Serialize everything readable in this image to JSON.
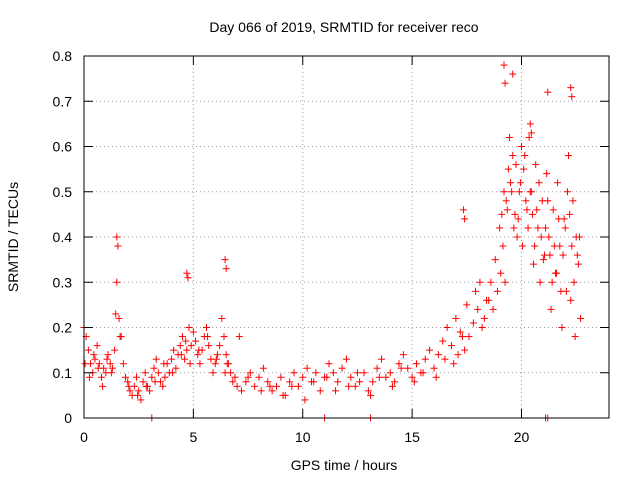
{
  "chart_data": {
    "type": "scatter",
    "title": "Day 066 of 2019, SRMTID for receiver reco",
    "xlabel": "GPS time / hours",
    "ylabel": "SRMTID / TECUs",
    "xlim": [
      0,
      24
    ],
    "ylim": [
      0,
      0.8
    ],
    "xticks": [
      0,
      5,
      10,
      15,
      20
    ],
    "xtick_labels": [
      "0",
      "5",
      "10",
      "15",
      "20"
    ],
    "yticks": [
      0,
      0.1,
      0.2,
      0.3,
      0.4,
      0.5,
      0.6,
      0.7,
      0.8
    ],
    "ytick_labels": [
      "0",
      "0.1",
      "0.2",
      "0.3",
      "0.4",
      "0.5",
      "0.6",
      "0.7",
      "0.8"
    ],
    "grid": true,
    "marker": "+",
    "color": "#ff0000",
    "series": [
      {
        "name": "SRMTID",
        "x": [
          0.0,
          0.1,
          0.2,
          0.3,
          0.4,
          0.5,
          0.6,
          0.7,
          0.8,
          0.9,
          1.0,
          1.1,
          1.2,
          1.3,
          1.4,
          1.5,
          1.6,
          1.7,
          1.8,
          1.9,
          2.0,
          2.1,
          2.2,
          2.3,
          2.4,
          2.5,
          2.6,
          2.7,
          2.8,
          2.9,
          3.0,
          3.1,
          3.2,
          3.3,
          3.4,
          3.5,
          3.6,
          3.7,
          3.8,
          3.9,
          4.0,
          4.1,
          4.2,
          4.3,
          4.4,
          4.5,
          4.6,
          4.7,
          4.8,
          4.9,
          5.0,
          5.1,
          5.2,
          5.3,
          5.4,
          5.5,
          5.6,
          5.7,
          5.8,
          5.9,
          6.0,
          6.1,
          6.2,
          6.3,
          6.4,
          6.5,
          6.6,
          6.7,
          6.8,
          6.9,
          7.0,
          7.2,
          7.4,
          7.6,
          7.8,
          8.0,
          8.2,
          8.4,
          8.6,
          8.8,
          9.0,
          9.2,
          9.4,
          9.6,
          9.8,
          10.0,
          10.2,
          10.4,
          10.6,
          10.8,
          11.0,
          11.2,
          11.4,
          11.6,
          11.8,
          12.0,
          12.2,
          12.4,
          12.6,
          12.8,
          13.0,
          13.2,
          13.4,
          13.6,
          13.8,
          14.0,
          14.2,
          14.4,
          14.6,
          14.8,
          15.0,
          15.2,
          15.4,
          15.6,
          15.8,
          16.0,
          16.2,
          16.4,
          16.6,
          16.8,
          17.0,
          17.2,
          17.4,
          17.6,
          17.8,
          18.0,
          18.2,
          18.4,
          18.6,
          18.8,
          19.0,
          19.1,
          19.2,
          19.3,
          19.4,
          19.5,
          19.6,
          19.7,
          19.8,
          19.9,
          20.0,
          20.1,
          20.2,
          20.3,
          20.4,
          20.5,
          20.6,
          20.7,
          20.8,
          20.9,
          21.0,
          21.1,
          21.2,
          21.3,
          21.4,
          21.5,
          21.6,
          21.7,
          21.8,
          21.9,
          22.0,
          22.1,
          22.2,
          22.3,
          22.4,
          22.5,
          22.6,
          22.7,
          0.05,
          0.25,
          0.45,
          0.65,
          0.85,
          1.05,
          1.25,
          1.45,
          1.65,
          2.05,
          2.45,
          2.85,
          3.25,
          3.65,
          4.05,
          4.45,
          4.65,
          4.85,
          5.25,
          5.65,
          6.05,
          6.45,
          6.55,
          7.1,
          7.5,
          8.1,
          8.5,
          9.1,
          9.5,
          10.1,
          10.5,
          11.1,
          11.5,
          12.1,
          12.5,
          13.1,
          13.5,
          14.1,
          14.5,
          15.1,
          15.5,
          16.1,
          16.5,
          16.9,
          17.1,
          17.3,
          17.5,
          17.9,
          18.1,
          18.3,
          18.5,
          18.7,
          18.9,
          19.05,
          19.15,
          19.25,
          19.35,
          19.45,
          19.55,
          19.65,
          19.75,
          19.85,
          19.95,
          20.05,
          20.15,
          20.25,
          20.35,
          20.45,
          20.55,
          20.65,
          20.75,
          20.85,
          20.95,
          21.05,
          21.15,
          21.25,
          21.35,
          21.45,
          21.55,
          21.65,
          21.75,
          21.85,
          21.95,
          22.05,
          22.15,
          22.25,
          22.35,
          22.45,
          22.55,
          22.65,
          1.5,
          1.55,
          4.7,
          4.75,
          6.45,
          6.5,
          17.35,
          17.4,
          19.2,
          19.25,
          19.6,
          20.4,
          20.45,
          21.2,
          22.25,
          22.3,
          3.1,
          11.0,
          13.1,
          21.1,
          21.2
        ],
        "y": [
          0.2,
          0.18,
          0.15,
          0.12,
          0.1,
          0.13,
          0.16,
          0.12,
          0.09,
          0.11,
          0.1,
          0.14,
          0.12,
          0.11,
          0.15,
          0.3,
          0.22,
          0.18,
          0.12,
          0.09,
          0.08,
          0.06,
          0.05,
          0.07,
          0.09,
          0.06,
          0.04,
          0.08,
          0.1,
          0.07,
          0.06,
          0.09,
          0.11,
          0.13,
          0.1,
          0.08,
          0.07,
          0.09,
          0.12,
          0.1,
          0.13,
          0.15,
          0.11,
          0.14,
          0.16,
          0.18,
          0.13,
          0.15,
          0.2,
          0.16,
          0.19,
          0.17,
          0.14,
          0.12,
          0.15,
          0.18,
          0.2,
          0.16,
          0.13,
          0.1,
          0.12,
          0.14,
          0.16,
          0.22,
          0.18,
          0.14,
          0.12,
          0.1,
          0.08,
          0.09,
          0.07,
          0.06,
          0.08,
          0.1,
          0.07,
          0.09,
          0.11,
          0.08,
          0.06,
          0.07,
          0.09,
          0.05,
          0.08,
          0.1,
          0.07,
          0.09,
          0.11,
          0.08,
          0.1,
          0.06,
          0.09,
          0.12,
          0.1,
          0.08,
          0.11,
          0.13,
          0.09,
          0.07,
          0.08,
          0.1,
          0.06,
          0.08,
          0.11,
          0.13,
          0.09,
          0.1,
          0.08,
          0.12,
          0.14,
          0.11,
          0.09,
          0.12,
          0.1,
          0.13,
          0.15,
          0.11,
          0.14,
          0.17,
          0.2,
          0.16,
          0.22,
          0.19,
          0.15,
          0.18,
          0.21,
          0.24,
          0.2,
          0.26,
          0.3,
          0.35,
          0.42,
          0.45,
          0.5,
          0.48,
          0.55,
          0.52,
          0.58,
          0.45,
          0.4,
          0.5,
          0.6,
          0.55,
          0.48,
          0.42,
          0.5,
          0.45,
          0.38,
          0.46,
          0.52,
          0.4,
          0.35,
          0.42,
          0.48,
          0.36,
          0.3,
          0.38,
          0.32,
          0.44,
          0.28,
          0.36,
          0.42,
          0.5,
          0.45,
          0.38,
          0.3,
          0.4,
          0.34,
          0.22,
          0.12,
          0.09,
          0.14,
          0.11,
          0.07,
          0.13,
          0.1,
          0.23,
          0.18,
          0.07,
          0.05,
          0.07,
          0.08,
          0.12,
          0.1,
          0.14,
          0.17,
          0.12,
          0.15,
          0.18,
          0.13,
          0.1,
          0.12,
          0.18,
          0.09,
          0.06,
          0.07,
          0.05,
          0.07,
          0.04,
          0.08,
          0.09,
          0.06,
          0.07,
          0.1,
          0.05,
          0.09,
          0.07,
          0.11,
          0.08,
          0.1,
          0.09,
          0.13,
          0.12,
          0.14,
          0.18,
          0.25,
          0.28,
          0.3,
          0.22,
          0.26,
          0.24,
          0.28,
          0.32,
          0.38,
          0.3,
          0.46,
          0.62,
          0.5,
          0.42,
          0.56,
          0.44,
          0.52,
          0.38,
          0.58,
          0.46,
          0.62,
          0.5,
          0.34,
          0.56,
          0.42,
          0.3,
          0.48,
          0.36,
          0.54,
          0.4,
          0.24,
          0.46,
          0.32,
          0.52,
          0.38,
          0.2,
          0.44,
          0.28,
          0.58,
          0.26,
          0.48,
          0.18,
          0.36,
          0.4,
          0.4,
          0.38,
          0.32,
          0.31,
          0.35,
          0.33,
          0.46,
          0.44,
          0.78,
          0.74,
          0.76,
          0.65,
          0.63,
          0.72,
          0.73,
          0.71,
          0.0,
          0.0,
          0.0,
          0.0,
          0.0
        ]
      }
    ]
  }
}
